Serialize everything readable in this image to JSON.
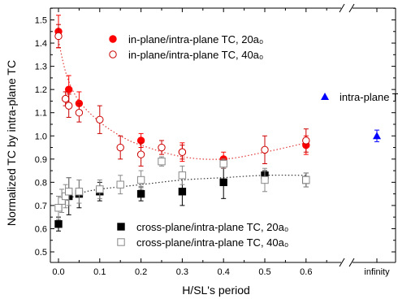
{
  "chart_data": {
    "type": "scatter",
    "xlabel": "H/SL's period",
    "ylabel": "Normalized TC by intra-plane TC",
    "ylim": [
      0.45,
      1.55
    ],
    "xlim": [
      -0.02,
      0.65
    ],
    "y_ticks": [
      "0.5",
      "0.6",
      "0.7",
      "0.8",
      "0.9",
      "1.0",
      "1.1",
      "1.2",
      "1.3",
      "1.4",
      "1.5"
    ],
    "x_ticks": [
      "0.0",
      "0.1",
      "0.2",
      "0.3",
      "0.4",
      "0.5",
      "0.6"
    ],
    "x_infinity_label": "infinity",
    "series": [
      {
        "name": "in-plane/intra-plane TC, 20a₀",
        "color": "#ff0000",
        "marker": "filled-circle",
        "points": [
          {
            "x": 0.0,
            "y": 1.45,
            "err": 0.07
          },
          {
            "x": 0.025,
            "y": 1.2,
            "err": 0.06
          },
          {
            "x": 0.05,
            "y": 1.14,
            "err": 0.05
          },
          {
            "x": 0.2,
            "y": 0.98,
            "err": 0.03
          },
          {
            "x": 0.3,
            "y": 0.93,
            "err": 0.04
          },
          {
            "x": 0.4,
            "y": 0.9,
            "err": 0.03
          },
          {
            "x": 0.6,
            "y": 0.96,
            "err": 0.04
          }
        ]
      },
      {
        "name": "in-plane/intra-plane TC, 40a₀",
        "color": "#cc0000",
        "marker": "open-circle",
        "points": [
          {
            "x": 0.0,
            "y": 1.43,
            "err": 0.05
          },
          {
            "x": 0.017,
            "y": 1.16,
            "err": 0.03
          },
          {
            "x": 0.025,
            "y": 1.13,
            "err": 0.05
          },
          {
            "x": 0.05,
            "y": 1.1,
            "err": 0.04
          },
          {
            "x": 0.1,
            "y": 1.07,
            "err": 0.06
          },
          {
            "x": 0.15,
            "y": 0.95,
            "err": 0.05
          },
          {
            "x": 0.2,
            "y": 0.92,
            "err": 0.05
          },
          {
            "x": 0.25,
            "y": 0.95,
            "err": 0.03
          },
          {
            "x": 0.3,
            "y": 0.93,
            "err": 0.03
          },
          {
            "x": 0.4,
            "y": 0.88,
            "err": 0.02
          },
          {
            "x": 0.5,
            "y": 0.94,
            "err": 0.06
          },
          {
            "x": 0.6,
            "y": 0.98,
            "err": 0.05
          }
        ]
      },
      {
        "name": "cross-plane/intra-plane TC, 20a₀",
        "color": "#000000",
        "marker": "filled-square",
        "points": [
          {
            "x": 0.0,
            "y": 0.62,
            "err": 0.03
          },
          {
            "x": 0.025,
            "y": 0.74,
            "err": 0.08
          },
          {
            "x": 0.05,
            "y": 0.75,
            "err": 0.06
          },
          {
            "x": 0.1,
            "y": 0.76,
            "err": 0.04
          },
          {
            "x": 0.2,
            "y": 0.75,
            "err": 0.03
          },
          {
            "x": 0.3,
            "y": 0.76,
            "err": 0.06
          },
          {
            "x": 0.4,
            "y": 0.8,
            "err": 0.07
          },
          {
            "x": 0.5,
            "y": 0.83,
            "err": 0.02
          },
          {
            "x": 0.6,
            "y": 0.81,
            "err": 0.03
          }
        ]
      },
      {
        "name": "cross-plane/intra-plane TC, 40a₀",
        "color": "#888888",
        "marker": "open-square",
        "points": [
          {
            "x": 0.0,
            "y": 0.69,
            "err": 0.05
          },
          {
            "x": 0.008,
            "y": 0.72,
            "err": 0.05
          },
          {
            "x": 0.017,
            "y": 0.74,
            "err": 0.05
          },
          {
            "x": 0.025,
            "y": 0.76,
            "err": 0.06
          },
          {
            "x": 0.05,
            "y": 0.76,
            "err": 0.05
          },
          {
            "x": 0.1,
            "y": 0.77,
            "err": 0.04
          },
          {
            "x": 0.15,
            "y": 0.79,
            "err": 0.04
          },
          {
            "x": 0.2,
            "y": 0.81,
            "err": 0.04
          },
          {
            "x": 0.25,
            "y": 0.89,
            "err": 0.02
          },
          {
            "x": 0.3,
            "y": 0.83,
            "err": 0.04
          },
          {
            "x": 0.4,
            "y": 0.88,
            "err": 0.02
          },
          {
            "x": 0.5,
            "y": 0.81,
            "err": 0.05
          },
          {
            "x": 0.6,
            "y": 0.81,
            "err": 0.03
          }
        ]
      },
      {
        "name": "intra-plane TC",
        "color": "#0000ff",
        "marker": "filled-triangle",
        "x_category": "infinity",
        "points": [
          {
            "y": 1.0,
            "err": 0.025
          }
        ]
      }
    ],
    "fits": [
      {
        "color": "#e23a3a",
        "style": "dotted",
        "x": [
          0.0,
          0.02,
          0.05,
          0.1,
          0.15,
          0.2,
          0.3,
          0.4,
          0.5,
          0.6
        ],
        "y": [
          1.41,
          1.26,
          1.15,
          1.06,
          1.0,
          0.96,
          0.91,
          0.9,
          0.93,
          0.97
        ]
      },
      {
        "color": "#333333",
        "style": "dotted",
        "x": [
          0.0,
          0.05,
          0.1,
          0.2,
          0.3,
          0.4,
          0.5,
          0.6
        ],
        "y": [
          0.7,
          0.75,
          0.77,
          0.79,
          0.81,
          0.82,
          0.83,
          0.83
        ]
      }
    ],
    "legend": {
      "top": [
        {
          "label": "in-plane/intra-plane TC, 20a₀",
          "marker": "filled-circle",
          "color": "#ff0000"
        },
        {
          "label": "in-plane/intra-plane TC, 40a₀",
          "marker": "open-circle",
          "color": "#cc0000"
        }
      ],
      "bottom": [
        {
          "label": "cross-plane/intra-plane TC, 20a₀",
          "marker": "filled-square",
          "color": "#000000"
        },
        {
          "label": "cross-plane/intra-plane TC, 40a₀",
          "marker": "open-square",
          "color": "#888888"
        }
      ],
      "side": {
        "label": "intra-plane TC",
        "marker": "filled-triangle",
        "color": "#0000ff"
      }
    },
    "grid": false,
    "axis_break": true
  }
}
